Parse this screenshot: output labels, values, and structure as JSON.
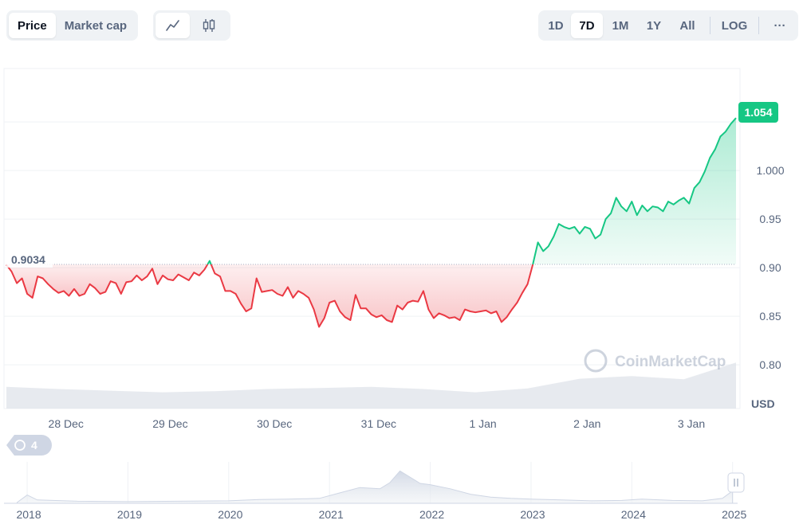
{
  "toolbar": {
    "metric_tabs": [
      {
        "label": "Price",
        "active": true
      },
      {
        "label": "Market cap",
        "active": false
      }
    ],
    "chart_type_icons": [
      {
        "icon": "line-chart-icon",
        "active": true
      },
      {
        "icon": "candlestick-icon",
        "active": false
      }
    ],
    "ranges": [
      {
        "label": "1D",
        "active": false
      },
      {
        "label": "7D",
        "active": true
      },
      {
        "label": "1M",
        "active": false
      },
      {
        "label": "1Y",
        "active": false
      },
      {
        "label": "All",
        "active": false
      }
    ],
    "log_label": "LOG",
    "more_label": "···"
  },
  "colors": {
    "up": "#16c784",
    "down": "#ea3943",
    "grid": "#eff2f5",
    "text": "#58667e",
    "volume": "#dfe3ea",
    "badge": "#16c784"
  },
  "chart_data": {
    "type": "line",
    "title": "",
    "xlabel": "",
    "ylabel": "",
    "y_unit": "USD",
    "x_ticks": [
      "28 Dec",
      "29 Dec",
      "30 Dec",
      "31 Dec",
      "1 Jan",
      "2 Jan",
      "3 Jan"
    ],
    "x_range": [
      "27 Dec ~15:00",
      "3 Jan ~13:00"
    ],
    "y_ticks": [
      0.8,
      0.85,
      0.9,
      0.95,
      1.0
    ],
    "y_tick_labels": [
      "0.80",
      "0.85",
      "0.90",
      "0.95",
      "1.000"
    ],
    "ylim": [
      0.755,
      1.105
    ],
    "baseline": 0.9034,
    "baseline_label": "0.9034",
    "current_value": 1.054,
    "current_label": "1.054",
    "grid": true,
    "series": [
      {
        "x": [
          0,
          0.05,
          0.1,
          0.15,
          0.2,
          0.25,
          0.3,
          0.35,
          0.4,
          0.45,
          0.5,
          0.55,
          0.6,
          0.65,
          0.7,
          0.75,
          0.8,
          0.85,
          0.9,
          0.95,
          1.0,
          1.05,
          1.1,
          1.15,
          1.2,
          1.25,
          1.3,
          1.35,
          1.4,
          1.45,
          1.5,
          1.55,
          1.6,
          1.65,
          1.7,
          1.75,
          1.8,
          1.85,
          1.9,
          1.95,
          2.0,
          2.05,
          2.1,
          2.15,
          2.2,
          2.25,
          2.3,
          2.35,
          2.4,
          2.45,
          2.5,
          2.55,
          2.6,
          2.65,
          2.7,
          2.75,
          2.8,
          2.85,
          2.9,
          2.95,
          3.0,
          3.05,
          3.1,
          3.15,
          3.2,
          3.25,
          3.3,
          3.35,
          3.4,
          3.45,
          3.5,
          3.55,
          3.6,
          3.65,
          3.7,
          3.75,
          3.8,
          3.85,
          3.9,
          3.95,
          4.0,
          4.05,
          4.1,
          4.15,
          4.2,
          4.25,
          4.3,
          4.35,
          4.4,
          4.45,
          4.5,
          4.55,
          4.6,
          4.65,
          4.7,
          4.75,
          4.8,
          4.85,
          4.9,
          4.95,
          5.0,
          5.05,
          5.1,
          5.15,
          5.2,
          5.25,
          5.3,
          5.35,
          5.4,
          5.45,
          5.5,
          5.55,
          5.6,
          5.65,
          5.7,
          5.75,
          5.8,
          5.85,
          5.9,
          5.95,
          6.0,
          6.05,
          6.1,
          6.15,
          6.2,
          6.25,
          6.3,
          6.35,
          6.4,
          6.45,
          6.5,
          6.55,
          6.6,
          6.65,
          6.7,
          6.75,
          6.8,
          6.85,
          6.9,
          6.95,
          7.0
        ],
        "values": [
          0.903,
          0.896,
          0.884,
          0.889,
          0.873,
          0.869,
          0.891,
          0.889,
          0.883,
          0.878,
          0.874,
          0.876,
          0.871,
          0.878,
          0.871,
          0.873,
          0.883,
          0.879,
          0.873,
          0.875,
          0.886,
          0.884,
          0.873,
          0.885,
          0.886,
          0.892,
          0.887,
          0.891,
          0.899,
          0.883,
          0.892,
          0.888,
          0.887,
          0.893,
          0.89,
          0.887,
          0.895,
          0.892,
          0.898,
          0.907,
          0.894,
          0.891,
          0.876,
          0.876,
          0.873,
          0.863,
          0.855,
          0.858,
          0.889,
          0.875,
          0.876,
          0.877,
          0.873,
          0.871,
          0.88,
          0.869,
          0.876,
          0.873,
          0.869,
          0.857,
          0.839,
          0.848,
          0.864,
          0.866,
          0.855,
          0.849,
          0.846,
          0.872,
          0.858,
          0.858,
          0.852,
          0.849,
          0.851,
          0.846,
          0.844,
          0.861,
          0.857,
          0.864,
          0.866,
          0.865,
          0.876,
          0.857,
          0.848,
          0.853,
          0.851,
          0.848,
          0.849,
          0.846,
          0.857,
          0.855,
          0.854,
          0.855,
          0.856,
          0.853,
          0.855,
          0.844,
          0.849,
          0.857,
          0.864,
          0.874,
          0.883,
          0.903,
          0.926,
          0.917,
          0.922,
          0.932,
          0.945,
          0.942,
          0.94,
          0.942,
          0.935,
          0.942,
          0.94,
          0.93,
          0.934,
          0.95,
          0.956,
          0.972,
          0.963,
          0.958,
          0.968,
          0.954,
          0.964,
          0.958,
          0.963,
          0.962,
          0.958,
          0.968,
          0.965,
          0.969,
          0.972,
          0.966,
          0.982,
          0.988,
          0.999,
          1.013,
          1.022,
          1.035,
          1.04,
          1.048,
          1.054
        ]
      }
    ],
    "volume": {
      "x": [
        0,
        0.5,
        1,
        1.5,
        2,
        2.5,
        3,
        3.5,
        4,
        4.5,
        5,
        5.5,
        6,
        6.5,
        7
      ],
      "values": [
        0.4,
        0.36,
        0.33,
        0.3,
        0.32,
        0.36,
        0.38,
        0.4,
        0.36,
        0.3,
        0.37,
        0.55,
        0.6,
        0.54,
        0.85
      ]
    },
    "navigator": {
      "x_ticks": [
        "2018",
        "2019",
        "2020",
        "2021",
        "2022",
        "2023",
        "2024",
        "2025"
      ],
      "x": [
        2017.9,
        2018.0,
        2018.1,
        2018.5,
        2019.0,
        2019.5,
        2020.0,
        2020.3,
        2020.6,
        2020.9,
        2021.1,
        2021.3,
        2021.5,
        2021.6,
        2021.7,
        2021.9,
        2022.0,
        2022.2,
        2022.4,
        2022.6,
        2022.8,
        2023.0,
        2023.3,
        2023.6,
        2023.9,
        2024.1,
        2024.4,
        2024.7,
        2024.9,
        2025.0
      ],
      "values": [
        0.02,
        0.2,
        0.08,
        0.05,
        0.04,
        0.05,
        0.06,
        0.09,
        0.1,
        0.12,
        0.25,
        0.38,
        0.35,
        0.5,
        0.78,
        0.48,
        0.45,
        0.35,
        0.22,
        0.15,
        0.12,
        0.1,
        0.08,
        0.06,
        0.07,
        0.1,
        0.07,
        0.06,
        0.12,
        0.3
      ]
    }
  },
  "watermark": "CoinMarketCap",
  "events_badge": "4"
}
